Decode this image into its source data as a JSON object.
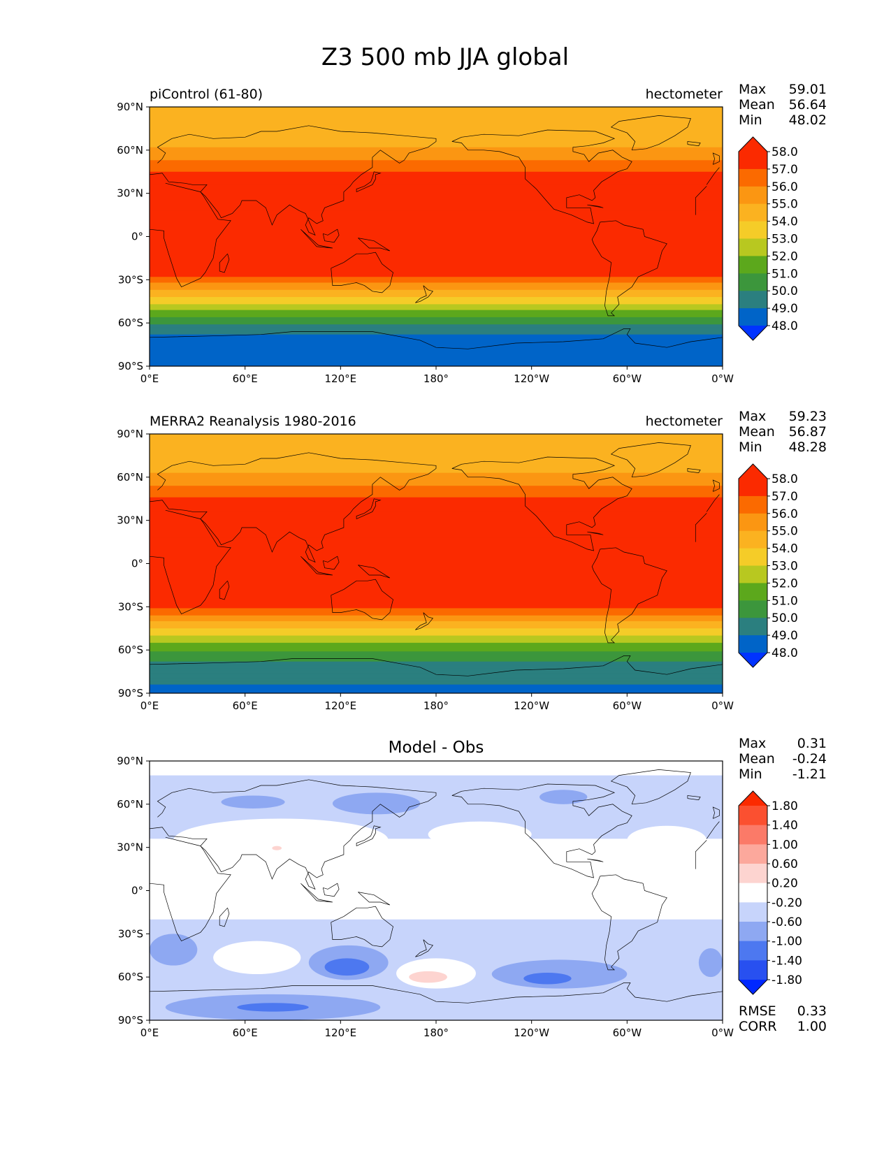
{
  "figure": {
    "title": "Z3 500 mb JJA global"
  },
  "axis_ticks": {
    "lat": [
      "90°N",
      "60°N",
      "30°N",
      "0°",
      "30°S",
      "60°S",
      "90°S"
    ],
    "lon": [
      "0°E",
      "60°E",
      "120°E",
      "180°",
      "120°W",
      "60°W",
      "0°W"
    ]
  },
  "stat_labels": {
    "max": "Max",
    "mean": "Mean",
    "min": "Min",
    "rmse": "RMSE",
    "corr": "CORR"
  },
  "colors": {
    "field_bands": [
      "#0064c8",
      "#2b7f7f",
      "#3c963c",
      "#5ca81c",
      "#b8c820",
      "#f5cc28",
      "#fbb220",
      "#fb9612",
      "#fb6a00",
      "#fb2a00"
    ],
    "field_over": "#fb2a00",
    "field_under": "#0033ff",
    "diff_bands": [
      "#2850f0",
      "#4d78f0",
      "#8ea8f2",
      "#c7d4fb",
      "#ffffff",
      "#fdd4d0",
      "#fca89c",
      "#fb7a68",
      "#fb5030"
    ],
    "diff_over": "#fb2a00",
    "diff_under": "#0028ff",
    "coastline": "#000000"
  },
  "chart_data": [
    {
      "type": "heatmap",
      "panel": "test",
      "left_title": "piControl (61-80)",
      "center_title": "",
      "units": "hectometer",
      "xlim": [
        0,
        360
      ],
      "ylim": [
        -90,
        90
      ],
      "levels": [
        48.0,
        49.0,
        50.0,
        51.0,
        52.0,
        53.0,
        54.0,
        55.0,
        56.0,
        57.0,
        58.0
      ],
      "colorbar_labels": [
        "58.0",
        "57.0",
        "56.0",
        "55.0",
        "54.0",
        "53.0",
        "52.0",
        "51.0",
        "50.0",
        "49.0",
        "48.0"
      ],
      "stats": {
        "max": "59.01",
        "mean": "56.64",
        "min": "48.02"
      },
      "zonal_profile": {
        "lat": [
          -90,
          -75,
          -68,
          -64,
          -60,
          -57,
          -54,
          -51,
          -48,
          -45,
          -42,
          -38,
          -34,
          -30,
          -26,
          -22,
          0,
          30,
          38,
          42,
          46,
          50,
          54,
          58,
          62,
          66,
          70,
          80,
          90
        ],
        "value": [
          48.4,
          48.6,
          49.0,
          49.6,
          50.2,
          50.8,
          51.4,
          52.0,
          52.7,
          53.4,
          54.1,
          54.9,
          55.6,
          56.5,
          57.4,
          58.1,
          58.7,
          58.5,
          57.8,
          57.4,
          56.9,
          56.4,
          55.9,
          55.4,
          55.0,
          54.6,
          54.3,
          54.1,
          54.0
        ]
      }
    },
    {
      "type": "heatmap",
      "panel": "reference",
      "left_title": "MERRA2 Reanalysis 1980-2016",
      "center_title": "",
      "units": "hectometer",
      "xlim": [
        0,
        360
      ],
      "ylim": [
        -90,
        90
      ],
      "levels": [
        48.0,
        49.0,
        50.0,
        51.0,
        52.0,
        53.0,
        54.0,
        55.0,
        56.0,
        57.0,
        58.0
      ],
      "colorbar_labels": [
        "58.0",
        "57.0",
        "56.0",
        "55.0",
        "54.0",
        "53.0",
        "52.0",
        "51.0",
        "50.0",
        "49.0",
        "48.0"
      ],
      "stats": {
        "max": "59.23",
        "mean": "56.87",
        "min": "48.28"
      },
      "zonal_profile": {
        "lat": [
          -90,
          -78,
          -72,
          -66,
          -62,
          -58,
          -55,
          -52,
          -49,
          -46,
          -43,
          -40,
          -37,
          -33,
          -29,
          -25,
          0,
          30,
          40,
          44,
          48,
          52,
          56,
          60,
          64,
          68,
          72,
          80,
          90
        ],
        "value": [
          48.8,
          49.2,
          49.6,
          50.2,
          50.8,
          51.4,
          52.0,
          52.6,
          53.2,
          53.8,
          54.4,
          55.0,
          55.7,
          56.5,
          57.3,
          58.1,
          58.8,
          58.6,
          57.8,
          57.3,
          56.8,
          56.3,
          55.8,
          55.3,
          54.9,
          54.5,
          54.2,
          54.05,
          54.0
        ]
      }
    },
    {
      "type": "heatmap",
      "panel": "difference",
      "left_title": "",
      "center_title": "Model - Obs",
      "units": "",
      "xlim": [
        0,
        360
      ],
      "ylim": [
        -90,
        90
      ],
      "levels": [
        -1.8,
        -1.4,
        -1.0,
        -0.6,
        -0.2,
        0.2,
        0.6,
        1.0,
        1.4,
        1.8
      ],
      "colorbar_labels": [
        "1.80",
        "1.40",
        "1.00",
        "0.60",
        "0.20",
        "-0.20",
        "-0.60",
        "-1.00",
        "-1.40",
        "-1.80"
      ],
      "stats": {
        "max": "0.31",
        "mean": "-0.24",
        "min": "-1.21",
        "rmse": "0.33",
        "corr": "1.00"
      },
      "regions": [
        {
          "value": -0.4,
          "lon": [
            0,
            360
          ],
          "lat": [
            -90,
            80
          ]
        },
        {
          "value": 0.0,
          "lon": [
            0,
            360
          ],
          "lat": [
            -20,
            36
          ]
        },
        {
          "value": 0.0,
          "lon": [
            15,
            150
          ],
          "lat": [
            20,
            50
          ]
        },
        {
          "value": 0.0,
          "lon": [
            175,
            240
          ],
          "lat": [
            30,
            48
          ]
        },
        {
          "value": 0.0,
          "lon": [
            300,
            350
          ],
          "lat": [
            25,
            45
          ]
        },
        {
          "value": 0.0,
          "lon": [
            40,
            95
          ],
          "lat": [
            -58,
            -35
          ]
        },
        {
          "value": 0.0,
          "lon": [
            155,
            205
          ],
          "lat": [
            -68,
            -47
          ]
        },
        {
          "value": 0.25,
          "lon": [
            163,
            187
          ],
          "lat": [
            -64,
            -56
          ]
        },
        {
          "value": 0.25,
          "lon": [
            77,
            83
          ],
          "lat": [
            28,
            31
          ]
        },
        {
          "value": -0.8,
          "lon": [
            45,
            85
          ],
          "lat": [
            57,
            66
          ]
        },
        {
          "value": -0.8,
          "lon": [
            115,
            170
          ],
          "lat": [
            53,
            68
          ]
        },
        {
          "value": -0.8,
          "lon": [
            245,
            275
          ],
          "lat": [
            60,
            70
          ]
        },
        {
          "value": -0.8,
          "lon": [
            0,
            30
          ],
          "lat": [
            -52,
            -30
          ]
        },
        {
          "value": -0.8,
          "lon": [
            100,
            150
          ],
          "lat": [
            -62,
            -38
          ]
        },
        {
          "value": -1.2,
          "lon": [
            110,
            138
          ],
          "lat": [
            -59,
            -47
          ]
        },
        {
          "value": -0.8,
          "lon": [
            215,
            300
          ],
          "lat": [
            -68,
            -48
          ]
        },
        {
          "value": -1.2,
          "lon": [
            235,
            265
          ],
          "lat": [
            -65,
            -57
          ]
        },
        {
          "value": -0.8,
          "lon": [
            10,
            145
          ],
          "lat": [
            -90,
            -72
          ]
        },
        {
          "value": -1.2,
          "lon": [
            55,
            100
          ],
          "lat": [
            -84,
            -78
          ]
        },
        {
          "value": -0.8,
          "lon": [
            345,
            360
          ],
          "lat": [
            -60,
            -40
          ]
        }
      ]
    }
  ]
}
